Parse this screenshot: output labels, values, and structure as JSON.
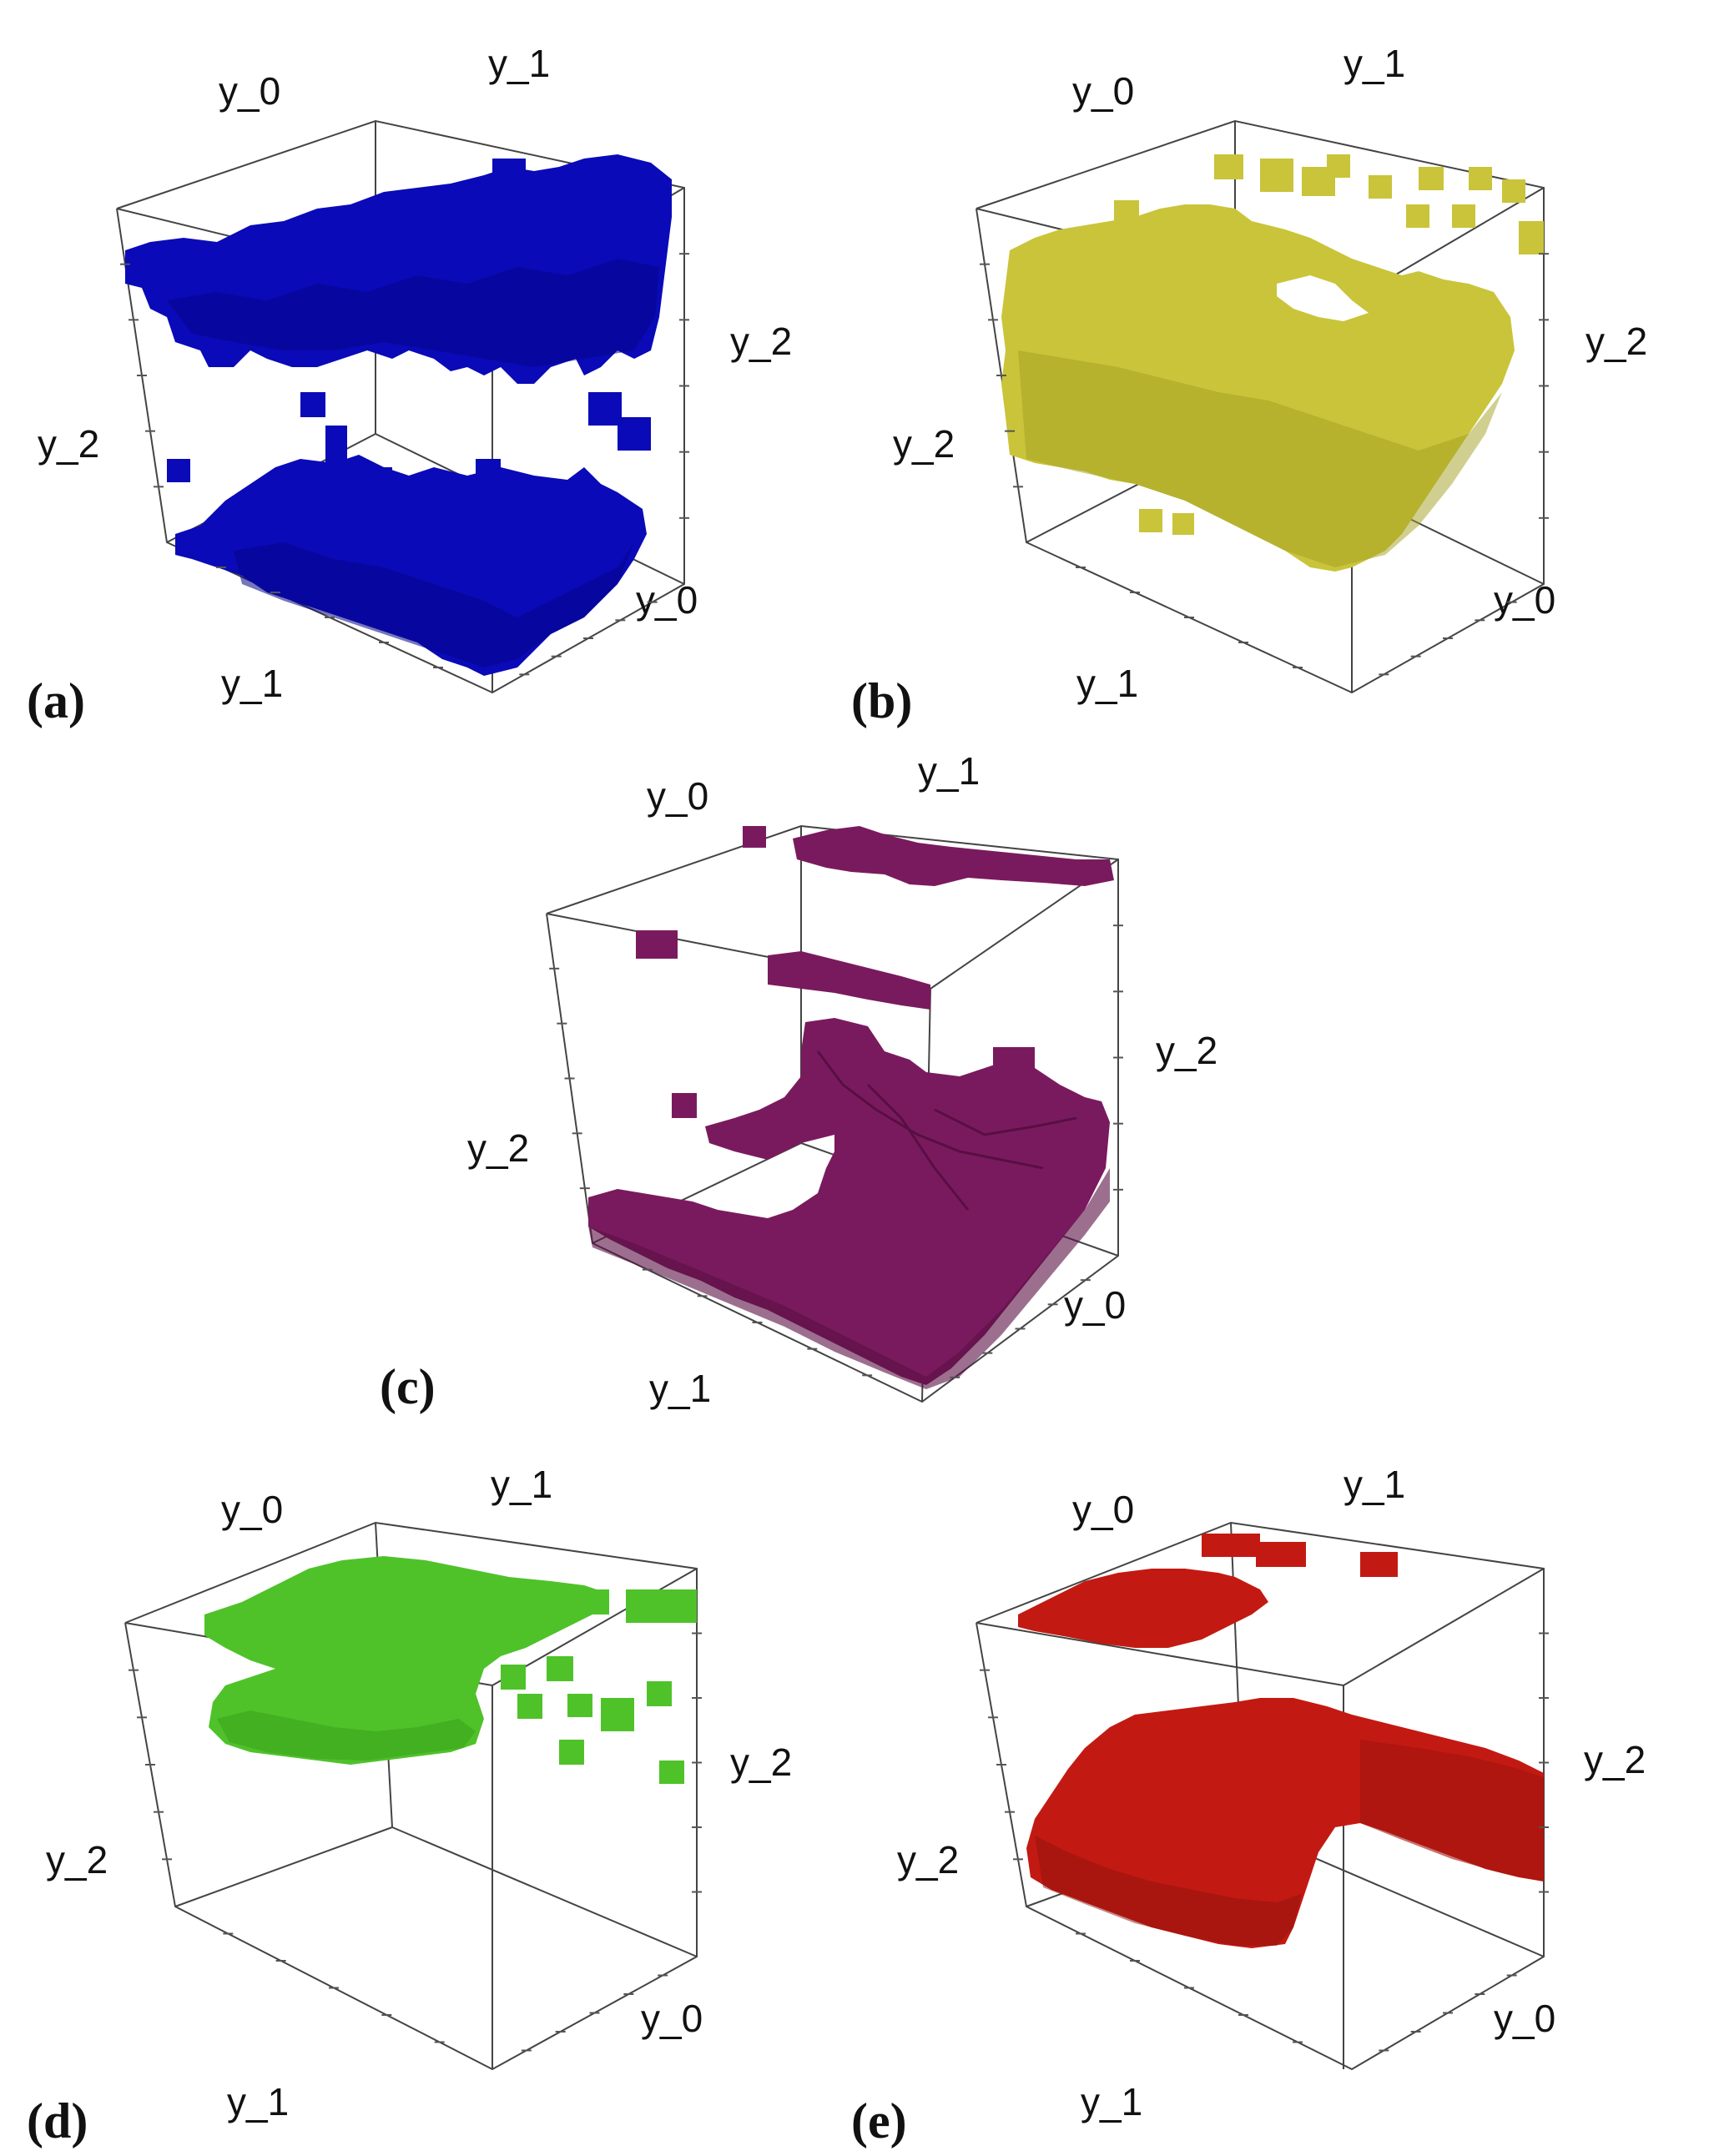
{
  "panels": [
    {
      "id": "a",
      "label": "(a)",
      "color": "#0a0ab8",
      "axes": {
        "top_left": "y_0",
        "top_right": "y_1",
        "right": "y_2",
        "left": "y_2",
        "bottom_right": "y_0",
        "bottom_left": "y_1"
      }
    },
    {
      "id": "b",
      "label": "(b)",
      "color": "#c9c43a",
      "axes": {
        "top_left": "y_0",
        "top_right": "y_1",
        "right": "y_2",
        "left": "y_2",
        "bottom_right": "y_0",
        "bottom_left": "y_1"
      }
    },
    {
      "id": "c",
      "label": "(c)",
      "color": "#7a1a5e",
      "axes": {
        "top_left": "y_0",
        "top_right": "y_1",
        "right": "y_2",
        "left": "y_2",
        "bottom_right": "y_0",
        "bottom_left": "y_1"
      }
    },
    {
      "id": "d",
      "label": "(d)",
      "color": "#4fc22a",
      "axes": {
        "top_left": "y_0",
        "top_right": "y_1",
        "right": "y_2",
        "left": "y_2",
        "bottom_right": "y_0",
        "bottom_left": "y_1"
      }
    },
    {
      "id": "e",
      "label": "(e)",
      "color": "#c21a12",
      "axes": {
        "top_left": "y_0",
        "top_right": "y_1",
        "right": "y_2",
        "left": "y_2",
        "bottom_right": "y_0",
        "bottom_left": "y_1"
      }
    }
  ]
}
